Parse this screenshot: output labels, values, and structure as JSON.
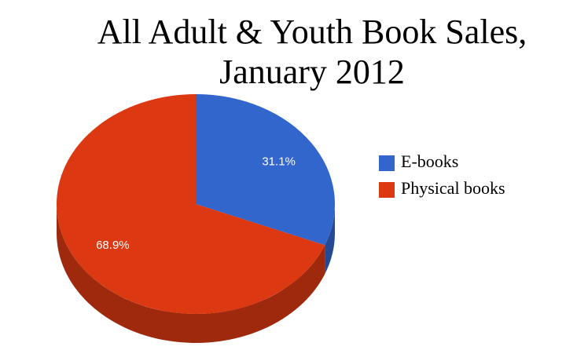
{
  "chart_data": {
    "type": "pie",
    "title": [
      "All Adult & Youth Book Sales,",
      "January 2012"
    ],
    "series": [
      {
        "name": "E-books",
        "color": "#3366cc",
        "values": [
          31.1
        ],
        "value_labels": [
          "31.1%"
        ]
      },
      {
        "name": "Physical books",
        "color": "#dc3912",
        "values": [
          68.9
        ],
        "value_labels": [
          "68.9%"
        ]
      }
    ],
    "legend": "right"
  }
}
